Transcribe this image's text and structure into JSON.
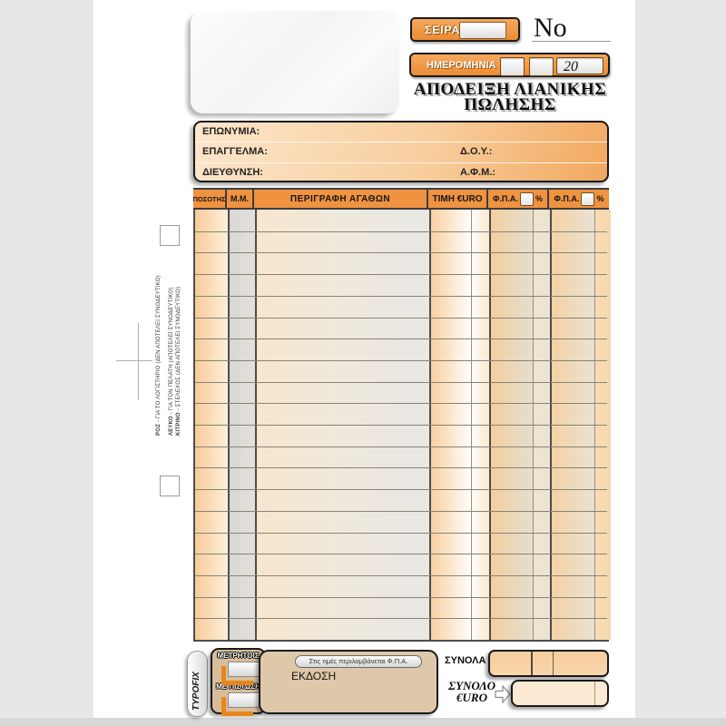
{
  "header": {
    "seira_label": "ΣΕΙΡΑ",
    "no_label": "No",
    "date_label": "ΗΜΕΡΟΜΗΝΙΑ",
    "date_century": "20",
    "title_line1": "ΑΠΟΔΕΙΞΗ ΛΙΑΝΙΚΗΣ",
    "title_line2": "ΠΩΛΗΣΗΣ"
  },
  "info": {
    "eponymia_label": "ΕΠΩΝΥΜΙΑ:",
    "epaggelma_label": "ΕΠΑΓΓΕΛΜΑ:",
    "doy_label": "Δ.Ο.Υ.:",
    "dieythynsi_label": "ΔΙΕΥΘΥΝΣΗ:",
    "afm_label": "Α.Φ.Μ.:"
  },
  "table": {
    "quantity_header": "ΠΟΣΟΤΗΣ",
    "unit_header": "Μ.Μ.",
    "description_header": "ΠΕΡΙΓΡΑΦΗ ΑΓΑΘΩΝ",
    "price_header": "ΤΙΜΗ €URO",
    "vat_header": "Φ.Π.Α.",
    "percent_label": "%",
    "row_count": 20
  },
  "side_notes": {
    "pink": {
      "word": "ΡΟΖ",
      "rest": " - ΓΙΑ ΤΟ ΛΟΓΙΣΤΗΡΙΟ  (ΔΕΝ ΑΠΟΤΕΛΕΙ ΣΥΝΟΔΕΥΤΙΚΟ)"
    },
    "white": {
      "word": "ΛΕΥΚΟ",
      "rest": " - ΓΙΑ ΤΟΝ ΠΕΛΑΤΗ  (ΑΠΟΤΕΛΕΙ ΣΥΝΟΔΕΥΤΙΚΟ)"
    },
    "yellow": {
      "word": "ΚΙΤΡΙΝΟ",
      "rest": " - ΣΤΕΛΕΧΟΣ  (ΔΕΝ ΑΠΟΤΕΛΕΙ ΣΥΝΟΔΕΥΤΙΚΟ)"
    }
  },
  "footer": {
    "brand": "TYPOFIX",
    "cash_label": "ΜΕΤΡΗΤΟΙΣ",
    "credit_label": "ΜΕ ΠΙΣΤΩΣΗ",
    "vat_note": "Στις τιμές περιλαμβάνεται Φ.Π.Α.",
    "edition_label": "ΕΚΔΟΣΗ",
    "totals_label": "ΣΥΝΟΛΑ",
    "grand_total_line1": "ΣΥΝΟΛΟ",
    "grand_total_line2": "€URO"
  },
  "colors": {
    "accent_orange": "#EF9340",
    "checkbox_orange": "#E8861B",
    "tan_box": "#DFC7A9",
    "paper": "#FFFFFF",
    "background": "#E7E7E7"
  }
}
